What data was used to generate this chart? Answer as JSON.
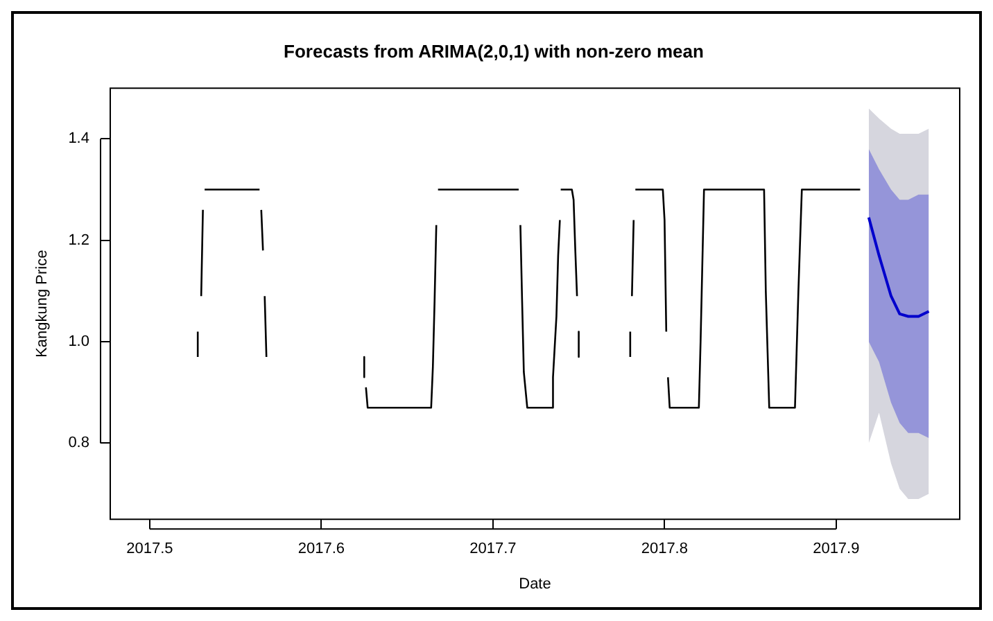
{
  "chart_data": {
    "type": "line",
    "title": "Forecasts from ARIMA(2,0,1) with non-zero mean",
    "xlabel": "Date",
    "ylabel": "Kangkung Price",
    "xlim": [
      2017.477,
      2017.972
    ],
    "xticks": [
      2017.5,
      2017.6,
      2017.7,
      2017.8,
      2017.9
    ],
    "ylim": [
      0.65,
      1.5
    ],
    "yticks": [
      {
        "value": 0.8,
        "label": "0.8"
      },
      {
        "value": 1,
        "label": "1.0"
      },
      {
        "value": 1.2,
        "label": "1.2"
      },
      {
        "value": 1.4,
        "label": "1.4"
      }
    ],
    "grid": false,
    "legend": false,
    "marker": "none",
    "line_style": "solid",
    "series": [
      {
        "color": "#000000",
        "x": [
          2017.528,
          2017.528,
          2017.529,
          2017.53,
          2017.531,
          2017.5315,
          2017.532,
          2017.564,
          2017.5645,
          2017.565,
          2017.566,
          2017.5665,
          2017.567,
          2017.568,
          2017.6,
          2017.625,
          2017.625,
          2017.6255,
          2017.626,
          2017.627,
          2017.664,
          2017.665,
          2017.666,
          2017.667,
          2017.6675,
          2017.668,
          2017.715,
          2017.7155,
          2017.716,
          2017.717,
          2017.718,
          2017.72,
          2017.735,
          2017.735,
          2017.737,
          2017.738,
          2017.739,
          2017.7392,
          2017.7395,
          2017.746,
          2017.747,
          2017.748,
          2017.749,
          2017.7495,
          2017.75,
          2017.75,
          2017.765,
          2017.78,
          2017.78,
          2017.7805,
          2017.781,
          2017.782,
          2017.7825,
          2017.783,
          2017.799,
          2017.8,
          2017.801,
          2017.8015,
          2017.802,
          2017.803,
          2017.82,
          2017.821,
          2017.823,
          2017.858,
          2017.859,
          2017.861,
          2017.876,
          2017.878,
          2017.88,
          2017.914
        ],
        "values": [
          0.97,
          1.02,
          null,
          1.09,
          1.26,
          null,
          1.3,
          1.3,
          null,
          1.26,
          1.18,
          null,
          1.09,
          0.97,
          null,
          0.97,
          0.93,
          null,
          0.91,
          0.87,
          0.87,
          0.95,
          1.08,
          1.23,
          null,
          1.3,
          1.3,
          null,
          1.23,
          1.08,
          0.94,
          0.87,
          0.87,
          0.93,
          1.05,
          1.17,
          1.24,
          null,
          1.3,
          1.3,
          1.28,
          1.18,
          1.09,
          null,
          1.02,
          0.97,
          null,
          0.97,
          1.02,
          null,
          1.09,
          1.24,
          null,
          1.3,
          1.3,
          1.24,
          1.02,
          null,
          0.93,
          0.87,
          0.87,
          1.0,
          1.3,
          1.3,
          1.1,
          0.87,
          0.87,
          1.1,
          1.3,
          1.3
        ]
      },
      {
        "color": "#0000cc",
        "x": [
          2017.919,
          2017.925,
          2017.932,
          2017.937,
          2017.942,
          2017.948,
          2017.954
        ],
        "values": [
          1.245,
          1.17,
          1.09,
          1.055,
          1.05,
          1.05,
          1.06
        ],
        "lower": [
          1.0,
          0.96,
          0.88,
          0.84,
          0.82,
          0.82,
          0.81
        ],
        "upper": [
          1.38,
          1.34,
          1.3,
          1.28,
          1.28,
          1.29,
          1.29
        ]
      },
      {
        "color": "#d6d6de",
        "x": [
          2017.919,
          2017.925,
          2017.932,
          2017.937,
          2017.942,
          2017.948,
          2017.954
        ],
        "values": [
          null,
          null,
          null,
          null,
          null,
          null,
          null
        ],
        "lower": [
          0.8,
          0.86,
          0.76,
          0.71,
          0.69,
          0.69,
          0.7
        ],
        "upper": [
          1.46,
          1.44,
          1.42,
          1.41,
          1.41,
          1.41,
          1.42
        ]
      }
    ]
  }
}
